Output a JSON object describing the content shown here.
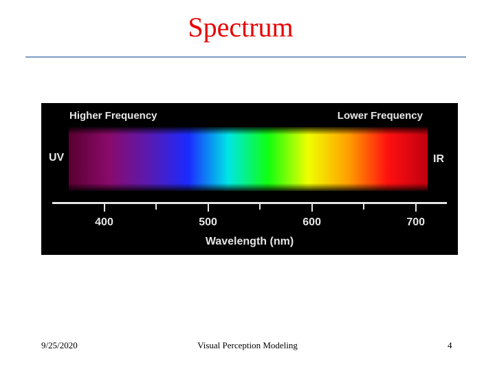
{
  "slide": {
    "title": "Spectrum",
    "title_color": "#e60000",
    "rule_color": "#7a9cc4"
  },
  "figure": {
    "higher_frequency_label": "Higher Frequency",
    "lower_frequency_label": "Lower Frequency",
    "uv_label": "UV",
    "ir_label": "IR",
    "axis_title": "Wavelength (nm)",
    "text_color": "#e6e6e6",
    "background": "#000000",
    "spectrum_colors": [
      "#5a0030",
      "#8a0a6a",
      "#5a1ab0",
      "#1a2aff",
      "#00e6e6",
      "#10ff10",
      "#f0ff00",
      "#ffa000",
      "#ff1010",
      "#c00010"
    ],
    "axis": {
      "min": 350,
      "max": 730,
      "major_ticks": [
        {
          "value": 400,
          "label": "400"
        },
        {
          "value": 500,
          "label": "500"
        },
        {
          "value": 600,
          "label": "600"
        },
        {
          "value": 700,
          "label": "700"
        }
      ],
      "minor_ticks": [
        450,
        550,
        650
      ]
    }
  },
  "footer": {
    "date": "9/25/2020",
    "course": "Visual Perception Modeling",
    "page_number": "4"
  }
}
